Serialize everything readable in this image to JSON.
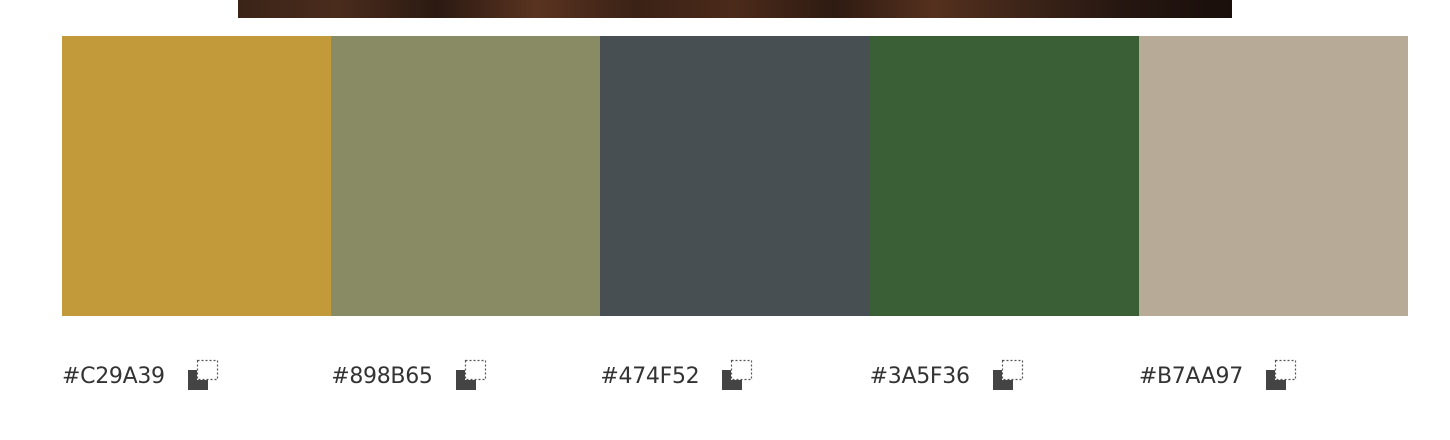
{
  "palette": {
    "swatches": [
      {
        "hex": "#C29A39",
        "label": "#C29A39",
        "icon": "copy-icon"
      },
      {
        "hex": "#898B65",
        "label": "#898B65",
        "icon": "copy-icon"
      },
      {
        "hex": "#474F52",
        "label": "#474F52",
        "icon": "copy-icon"
      },
      {
        "hex": "#3A5F36",
        "label": "#3A5F36",
        "icon": "copy-icon"
      },
      {
        "hex": "#B7AA97",
        "label": "#B7AA97",
        "icon": "copy-icon"
      }
    ]
  }
}
